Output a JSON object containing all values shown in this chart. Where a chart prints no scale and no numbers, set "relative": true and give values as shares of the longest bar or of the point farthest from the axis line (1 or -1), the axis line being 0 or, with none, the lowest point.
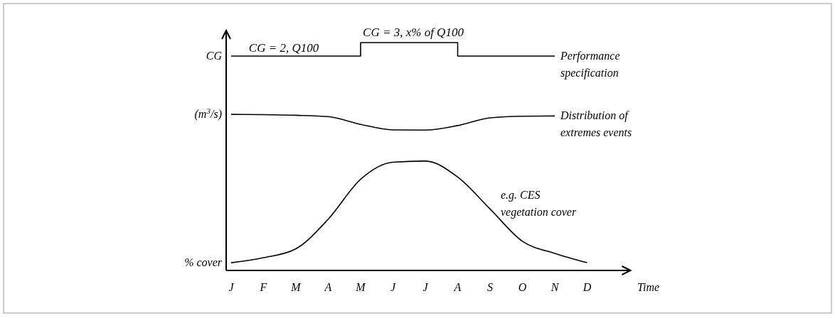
{
  "chart_data": {
    "type": "line",
    "relative": true,
    "xlabel": "Time",
    "categories": [
      "J",
      "F",
      "M",
      "A",
      "M",
      "J",
      "J",
      "A",
      "S",
      "O",
      "N",
      "D"
    ],
    "series": [
      {
        "name": "Performance specification",
        "type": "step",
        "color": "#000000",
        "values": [
          0.941,
          0.941,
          0.941,
          0.941,
          1,
          1,
          1,
          0.941,
          0.941,
          0.941,
          0.941,
          null
        ]
      },
      {
        "name": "Distribution of extremes events",
        "color": "#000000",
        "values": [
          0.685,
          0.684,
          0.681,
          0.675,
          0.641,
          0.617,
          0.616,
          0.636,
          0.67,
          0.677,
          0.678,
          null
        ]
      },
      {
        "name": "e.g. CES vegetation cover",
        "color": "#000000",
        "values": [
          0.034,
          0.056,
          0.095,
          0.225,
          0.4,
          0.475,
          0.48,
          0.41,
          0.27,
          0.128,
          0.075,
          0.034
        ]
      }
    ],
    "annotations": [
      "CG = 2, Q100",
      "CG = 3, x% of Q100",
      "CG",
      "(m$^{3}$/s)",
      "% cover"
    ]
  }
}
